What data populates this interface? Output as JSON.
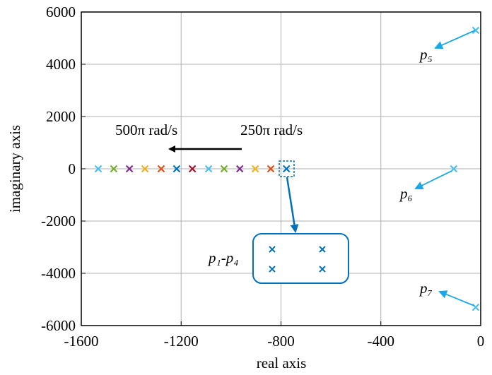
{
  "chart_data": {
    "type": "scatter",
    "x_label": "real axis",
    "y_label": "imaginary axis",
    "x": [
      -1532,
      -1470,
      -1407,
      -1345,
      -1280,
      -1218,
      -1155,
      -1090,
      -1028,
      -965,
      -903,
      -841,
      -778,
      -20,
      -108,
      -20
    ],
    "y": [
      0,
      0,
      0,
      0,
      0,
      0,
      0,
      0,
      0,
      0,
      0,
      0,
      0,
      5300,
      0,
      -5300
    ],
    "colors": [
      "#4DBEEE",
      "#77AC30",
      "#7E2F8E",
      "#EDB120",
      "#D95319",
      "#0072BD",
      "#A2142F",
      "#4DBEEE",
      "#77AC30",
      "#7E2F8E",
      "#EDB120",
      "#D95319",
      "#0072BD",
      "#4DBEEE",
      "#4DBEEE",
      "#4DBEEE"
    ],
    "xlim": [
      -1600,
      0
    ],
    "xticks": [
      -1600,
      -1200,
      -800,
      -400,
      0
    ],
    "ylim": [
      -6000,
      6000
    ],
    "yticks": [
      -6000,
      -4000,
      -2000,
      0,
      2000,
      4000,
      6000
    ],
    "grid": true,
    "annotations": [
      "500π rad/s",
      "250π rad/s",
      "p₅",
      "p₆",
      "p₇",
      "p₁-p₄"
    ]
  }
}
